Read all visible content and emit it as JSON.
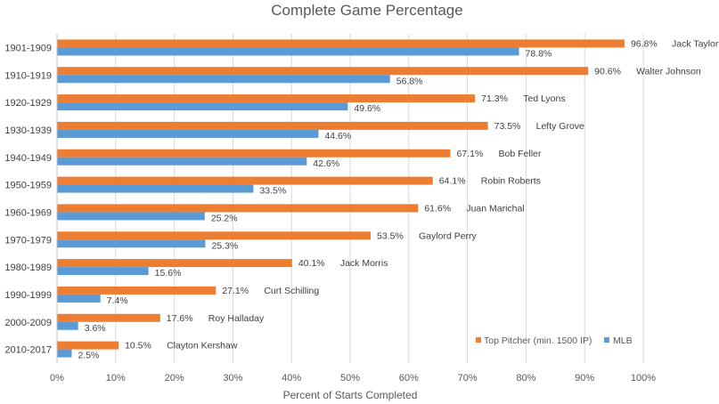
{
  "chart_data": {
    "type": "bar",
    "orientation": "horizontal",
    "title": "Complete Game Percentage",
    "xlabel": "Percent of Starts Completed",
    "ylabel": "",
    "xlim": [
      0,
      100
    ],
    "xticks": [
      "0%",
      "10%",
      "20%",
      "30%",
      "40%",
      "50%",
      "60%",
      "70%",
      "80%",
      "90%",
      "100%"
    ],
    "grid": true,
    "legend_position": "bottom-right",
    "categories": [
      "1901-1909",
      "1910-1919",
      "1920-1929",
      "1930-1939",
      "1940-1949",
      "1950-1959",
      "1960-1969",
      "1970-1979",
      "1980-1989",
      "1990-1999",
      "2000-2009",
      "2010-2017"
    ],
    "series": [
      {
        "name": "Top Pitcher (min. 1500 IP)",
        "color": "#ED7D31",
        "values": [
          96.8,
          90.6,
          71.3,
          73.5,
          67.1,
          64.1,
          61.6,
          53.5,
          40.1,
          27.1,
          17.6,
          10.5
        ],
        "labels": [
          "96.8%",
          "90.6%",
          "71.3%",
          "73.5%",
          "67.1%",
          "64.1%",
          "61.6%",
          "53.5%",
          "40.1%",
          "27.1%",
          "17.6%",
          "10.5%"
        ]
      },
      {
        "name": "MLB",
        "color": "#5B9BD5",
        "values": [
          78.8,
          56.8,
          49.6,
          44.6,
          42.6,
          33.5,
          25.2,
          25.3,
          15.6,
          7.4,
          3.6,
          2.5
        ],
        "labels": [
          "78.8%",
          "56.8%",
          "49.6%",
          "44.6%",
          "42.6%",
          "33.5%",
          "25.2%",
          "25.3%",
          "15.6%",
          "7.4%",
          "3.6%",
          "2.5%"
        ]
      }
    ],
    "pitchers": [
      "Jack Taylor",
      "Walter Johnson",
      "Ted Lyons",
      "Lefty Grove",
      "Bob Feller",
      "Robin Roberts",
      "Juan Marichal",
      "Gaylord Perry",
      "Jack Morris",
      "Curt Schilling",
      "Roy Halladay",
      "Clayton Kershaw"
    ]
  }
}
